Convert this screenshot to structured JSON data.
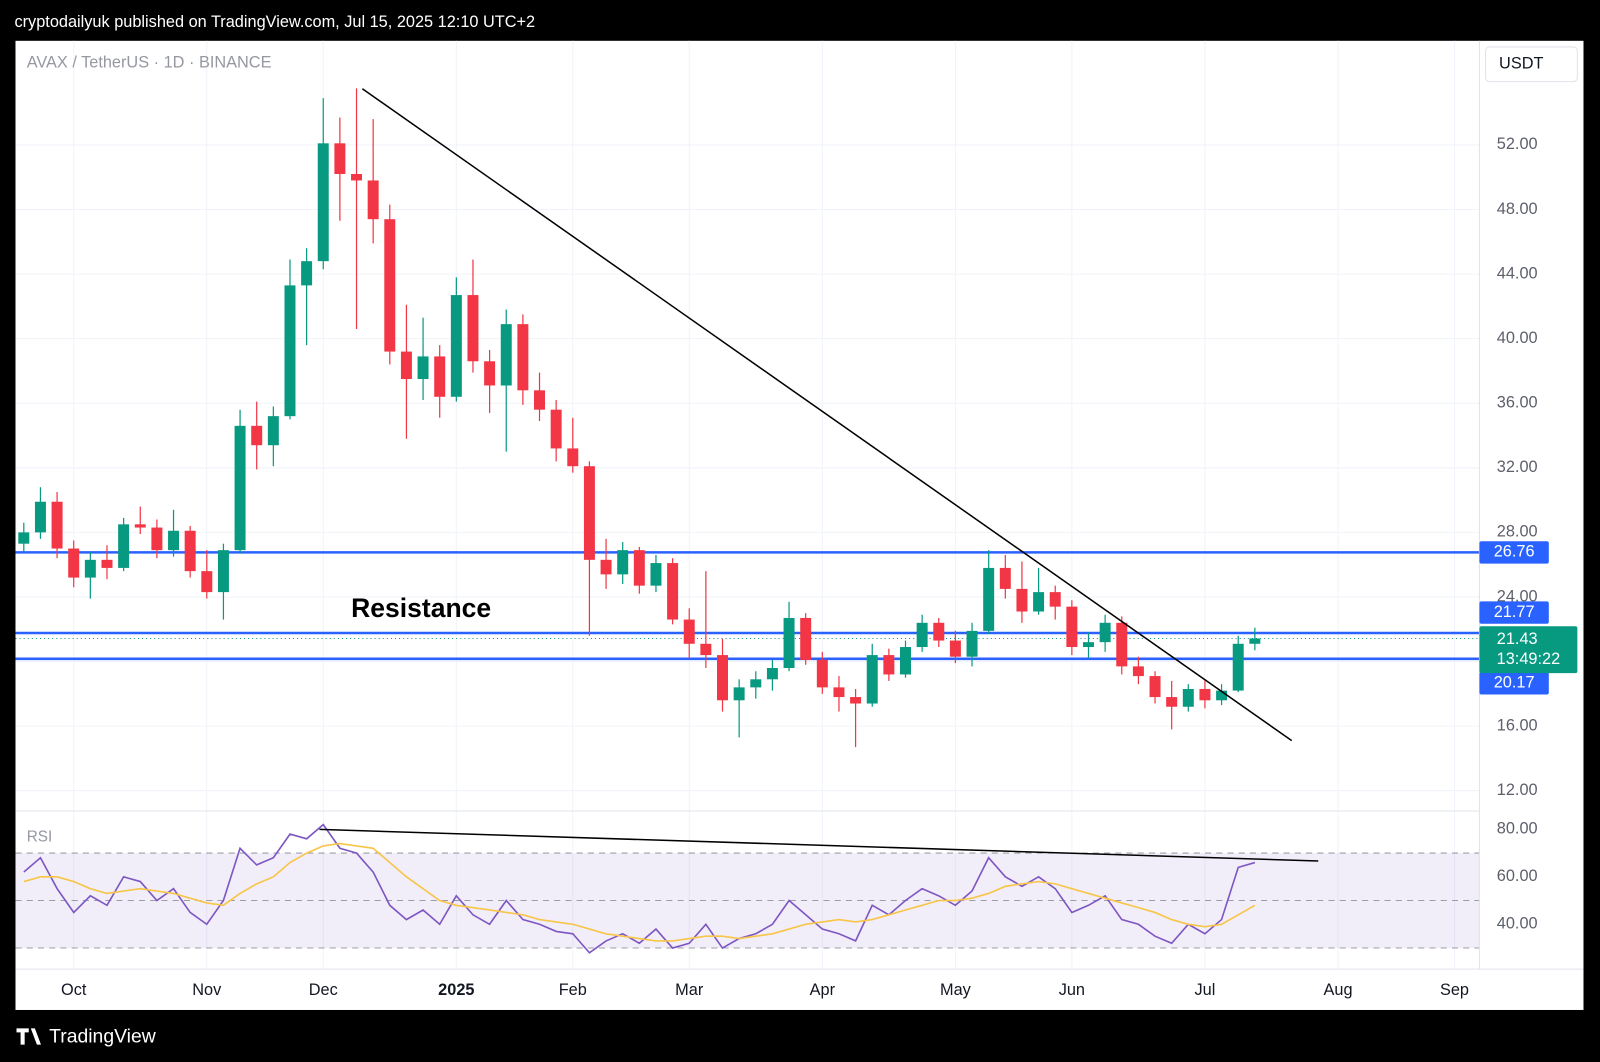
{
  "header": {
    "published": "cryptodailyuk published on TradingView.com, Jul 15, 2025 12:10 UTC+2"
  },
  "footer": {
    "brand": "TradingView"
  },
  "chart_data": [
    {
      "type": "candlestick",
      "title": "AVAX / TetherUS · 1D · BINANCE",
      "currency": "USDT",
      "annotation": "Resistance",
      "categories": [
        null,
        null,
        null,
        "Oct",
        null,
        null,
        null,
        null,
        null,
        null,
        null,
        "Nov",
        null,
        null,
        null,
        null,
        null,
        null,
        "Dec",
        null,
        null,
        null,
        null,
        null,
        null,
        null,
        "2025",
        null,
        null,
        null,
        null,
        null,
        null,
        "Feb",
        null,
        null,
        null,
        null,
        null,
        null,
        "Mar",
        null,
        null,
        null,
        null,
        null,
        null,
        null,
        "Apr",
        null,
        null,
        null,
        null,
        null,
        null,
        null,
        "May",
        null,
        null,
        null,
        null,
        null,
        null,
        "Jun",
        null,
        null,
        null,
        null,
        null,
        null,
        null,
        "Jul",
        null,
        null,
        null,
        null,
        null,
        null,
        null,
        "Aug",
        null,
        null,
        null,
        null,
        null,
        null,
        "Sep",
        null
      ],
      "open": [
        27.3,
        28.0,
        29.9,
        27.0,
        25.2,
        26.3,
        25.8,
        28.5,
        28.3,
        26.9,
        28.1,
        25.6,
        24.3,
        26.9,
        34.6,
        33.4,
        35.2,
        43.3,
        44.8,
        52.1,
        50.2,
        49.8,
        47.4,
        39.2,
        37.5,
        38.9,
        36.4,
        42.7,
        38.6,
        37.1,
        40.9,
        36.8,
        35.6,
        33.2,
        32.1,
        26.3,
        25.4,
        26.9,
        24.7,
        26.1,
        22.6,
        21.1,
        20.4,
        17.6,
        18.4,
        18.9,
        19.6,
        22.7,
        20.1,
        18.4,
        17.8,
        17.4,
        20.4,
        19.2,
        20.9,
        22.4,
        21.3,
        20.3,
        21.9,
        25.8,
        24.5,
        23.1,
        24.3,
        23.4,
        20.9,
        21.2,
        22.4,
        19.7,
        19.1,
        17.8,
        17.2,
        18.3,
        17.6,
        18.2,
        21.1,
        null,
        null,
        null,
        null,
        null,
        null,
        null,
        null,
        null,
        null,
        null,
        null,
        null
      ],
      "high": [
        28.6,
        30.8,
        30.5,
        27.5,
        26.8,
        27.2,
        28.9,
        29.6,
        28.8,
        29.4,
        28.4,
        26.9,
        27.3,
        35.6,
        36.1,
        35.8,
        44.9,
        45.6,
        54.9,
        53.7,
        55.5,
        53.6,
        48.3,
        42.1,
        41.3,
        39.6,
        43.8,
        44.9,
        39.3,
        41.8,
        41.5,
        37.9,
        36.2,
        35.1,
        32.4,
        27.6,
        27.4,
        27.1,
        26.6,
        26.4,
        23.3,
        25.6,
        21.4,
        18.9,
        19.4,
        20.1,
        23.7,
        23.0,
        20.6,
        19.1,
        18.3,
        21.1,
        20.8,
        21.3,
        22.9,
        22.7,
        21.9,
        22.4,
        26.9,
        26.6,
        26.2,
        25.8,
        24.7,
        23.8,
        21.8,
        22.9,
        22.8,
        20.3,
        19.4,
        18.8,
        18.6,
        18.9,
        18.6,
        21.6,
        22.1,
        null,
        null,
        null,
        null,
        null,
        null,
        null,
        null,
        null,
        null,
        null,
        null,
        null
      ],
      "low": [
        26.8,
        27.6,
        26.4,
        24.6,
        23.9,
        25.1,
        25.6,
        27.9,
        26.4,
        26.5,
        25.2,
        23.9,
        22.6,
        26.7,
        31.9,
        32.1,
        35.0,
        39.6,
        44.3,
        47.3,
        40.6,
        45.9,
        38.4,
        33.8,
        36.2,
        35.1,
        36.1,
        37.9,
        35.4,
        33.0,
        35.9,
        34.9,
        32.4,
        31.7,
        21.6,
        24.5,
        24.8,
        24.2,
        24.3,
        22.3,
        20.2,
        19.6,
        16.9,
        15.3,
        17.7,
        18.2,
        19.4,
        19.8,
        18.0,
        16.9,
        14.7,
        17.2,
        18.8,
        19.0,
        20.6,
        20.9,
        19.9,
        19.7,
        21.7,
        23.9,
        22.4,
        22.9,
        22.6,
        20.4,
        20.2,
        20.6,
        19.2,
        18.6,
        17.4,
        15.8,
        16.9,
        17.1,
        17.3,
        18.1,
        20.7,
        null,
        null,
        null,
        null,
        null,
        null,
        null,
        null,
        null,
        null,
        null,
        null,
        null
      ],
      "close": [
        28.0,
        29.9,
        27.0,
        25.2,
        26.3,
        25.8,
        28.5,
        28.3,
        26.9,
        28.1,
        25.6,
        24.3,
        26.9,
        34.6,
        33.4,
        35.2,
        43.3,
        44.8,
        52.1,
        50.2,
        49.8,
        47.4,
        39.2,
        37.5,
        38.9,
        36.4,
        42.7,
        38.6,
        37.1,
        40.9,
        36.8,
        35.6,
        33.2,
        32.1,
        26.3,
        25.4,
        26.9,
        24.7,
        26.1,
        22.6,
        21.1,
        20.4,
        17.6,
        18.4,
        18.9,
        19.6,
        22.7,
        20.1,
        18.4,
        17.8,
        17.4,
        20.4,
        19.2,
        20.9,
        22.4,
        21.3,
        20.3,
        21.9,
        25.8,
        24.5,
        23.1,
        24.3,
        23.4,
        20.9,
        21.2,
        22.4,
        19.7,
        19.1,
        17.8,
        17.2,
        18.3,
        17.6,
        18.2,
        21.1,
        21.43,
        null,
        null,
        null,
        null,
        null,
        null,
        null,
        null,
        null,
        null,
        null,
        null,
        null
      ],
      "up_color": "#089981",
      "down_color": "#f23645",
      "ylim": [
        10.74,
        58.45
      ],
      "yticks": [
        {
          "value": 12,
          "label": "12.00"
        },
        {
          "value": 16,
          "label": "16.00"
        },
        {
          "value": 20,
          "label": "20.00"
        },
        {
          "value": 24,
          "label": "24.00"
        },
        {
          "value": 28,
          "label": "28.00"
        },
        {
          "value": 32,
          "label": "32.00"
        },
        {
          "value": 36,
          "label": "36.00"
        },
        {
          "value": 40,
          "label": "40.00"
        },
        {
          "value": 44,
          "label": "44.00"
        },
        {
          "value": 48,
          "label": "48.00"
        },
        {
          "value": 52,
          "label": "52.00"
        }
      ],
      "levels": [
        26.76,
        21.77,
        20.17
      ],
      "level_color": "#2962ff",
      "last_price": 21.43,
      "countdown": "13:49:22",
      "grid": true
    },
    {
      "type": "line",
      "title": "RSI",
      "series": [
        {
          "color": "#7e57c2",
          "values": [
            62,
            68,
            55,
            45,
            52,
            48,
            60,
            58,
            50,
            55,
            45,
            40,
            50,
            72,
            65,
            68,
            78,
            76,
            82,
            72,
            70,
            62,
            48,
            42,
            46,
            40,
            52,
            44,
            40,
            50,
            42,
            40,
            37,
            36,
            28,
            33,
            36,
            32,
            38,
            30,
            32,
            40,
            30,
            34,
            36,
            40,
            50,
            44,
            38,
            36,
            33,
            48,
            44,
            50,
            55,
            52,
            48,
            54,
            68,
            60,
            56,
            60,
            55,
            45,
            48,
            52,
            42,
            40,
            35,
            32,
            40,
            36,
            42,
            64,
            66,
            null,
            null,
            null,
            null,
            null,
            null,
            null,
            null,
            null,
            null,
            null,
            null,
            null
          ]
        },
        {
          "color": "#f7c548",
          "values": [
            58,
            60,
            60,
            58,
            55,
            53,
            54,
            55,
            54,
            53,
            51,
            49,
            48,
            53,
            57,
            60,
            66,
            70,
            73,
            74,
            73,
            72,
            66,
            60,
            55,
            50,
            48,
            47,
            46,
            45,
            44,
            42,
            41,
            40,
            38,
            36,
            35,
            34,
            33,
            33,
            34,
            35,
            35,
            34,
            35,
            36,
            38,
            40,
            41,
            42,
            41,
            42,
            44,
            46,
            48,
            50,
            50,
            51,
            53,
            56,
            57,
            58,
            57,
            55,
            53,
            51,
            49,
            47,
            45,
            42,
            40,
            39,
            40,
            44,
            48,
            null,
            null,
            null,
            null,
            null,
            null,
            null,
            null,
            null,
            null,
            null,
            null,
            null
          ]
        }
      ],
      "bands": [
        70,
        50,
        30
      ],
      "ylim": [
        21.1,
        87.7
      ],
      "yticks": [
        {
          "value": 40,
          "label": "40.00"
        },
        {
          "value": 60,
          "label": "60.00"
        },
        {
          "value": 80,
          "label": "80.00"
        }
      ]
    }
  ]
}
